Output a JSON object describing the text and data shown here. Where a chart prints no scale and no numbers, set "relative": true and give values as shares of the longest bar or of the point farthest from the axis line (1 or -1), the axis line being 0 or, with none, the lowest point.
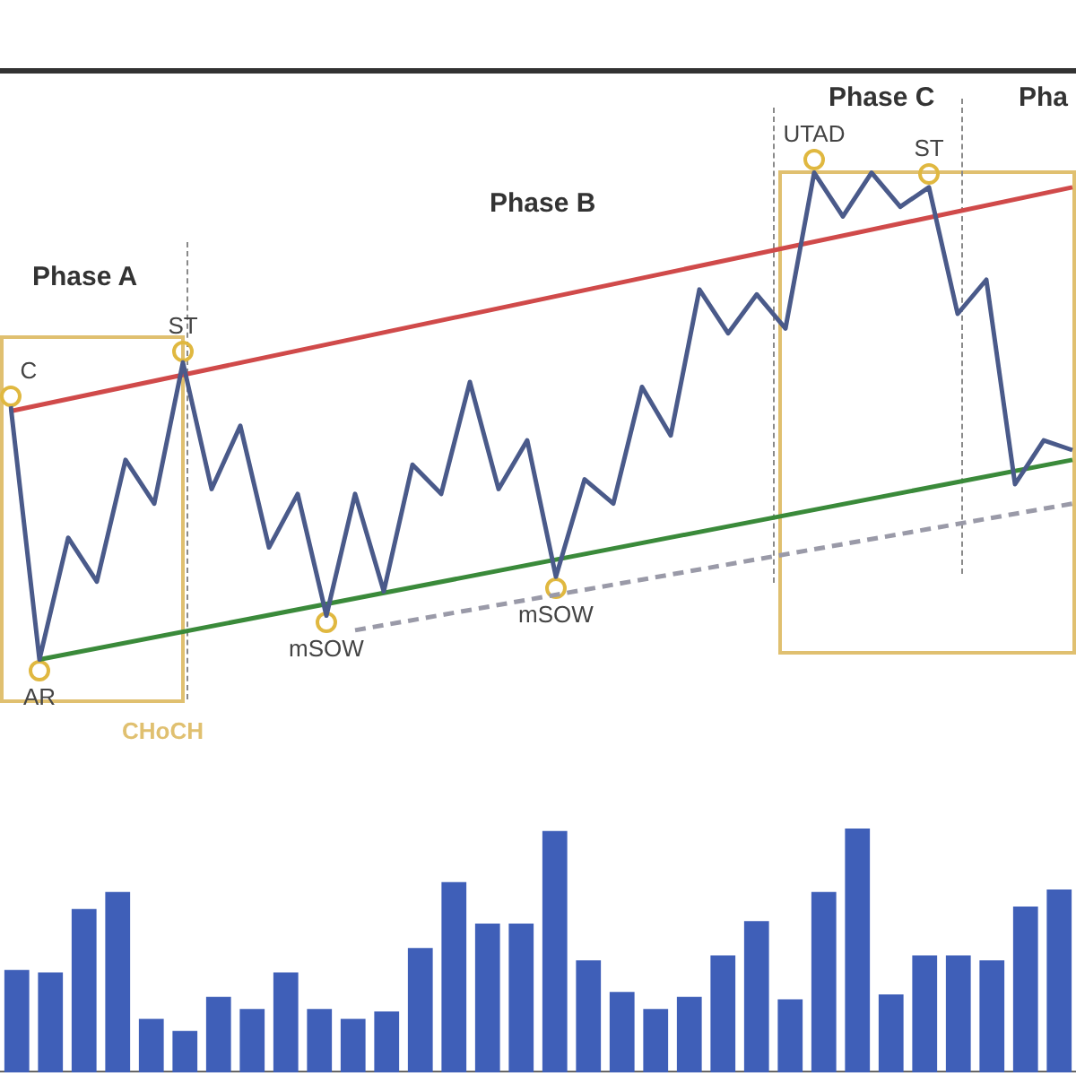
{
  "chart_data": [
    {
      "type": "line",
      "relative": true,
      "tick_labels": false,
      "grid": false,
      "legend": false,
      "categories": [
        null,
        null,
        null,
        null,
        null,
        null,
        null,
        null,
        null,
        null,
        null,
        null,
        null,
        null,
        null,
        null,
        null,
        null,
        null,
        null,
        null,
        null,
        null,
        null,
        null,
        null,
        null,
        null,
        null,
        null,
        null,
        null,
        null,
        null,
        null,
        null,
        null,
        null
      ],
      "series": [
        {
          "color": "#4a5a8a",
          "values": [
            0.52,
            0,
            0.25,
            0.16,
            0.41,
            0.32,
            0.61,
            0.35,
            0.48,
            0.23,
            0.34,
            0.09,
            0.34,
            0.14,
            0.4,
            0.34,
            0.57,
            0.35,
            0.45,
            0.17,
            0.37,
            0.32,
            0.56,
            0.46,
            0.76,
            0.67,
            0.75,
            0.68,
            1,
            0.91,
            1,
            0.93,
            0.97,
            0.71,
            0.78,
            0.36,
            0.45,
            0.43
          ]
        },
        {
          "color": "#d04a4a",
          "values": [
            0.51,
            null,
            null,
            null,
            null,
            null,
            null,
            null,
            null,
            null,
            null,
            null,
            null,
            null,
            null,
            null,
            null,
            null,
            null,
            null,
            null,
            null,
            null,
            null,
            null,
            null,
            null,
            null,
            null,
            null,
            null,
            null,
            null,
            null,
            null,
            null,
            null,
            0.97
          ]
        },
        {
          "color": "#3a8a3a",
          "values": [
            null,
            0,
            null,
            null,
            null,
            null,
            null,
            null,
            null,
            null,
            null,
            null,
            null,
            null,
            null,
            null,
            null,
            null,
            null,
            null,
            null,
            null,
            null,
            null,
            null,
            null,
            null,
            null,
            null,
            null,
            null,
            null,
            null,
            null,
            null,
            null,
            null,
            0.41
          ]
        },
        {
          "color": "#9a9aa8",
          "line_style": "dashed",
          "values": [
            null,
            null,
            null,
            null,
            null,
            null,
            null,
            null,
            null,
            null,
            null,
            null,
            0.06,
            null,
            null,
            null,
            null,
            null,
            null,
            null,
            null,
            null,
            null,
            null,
            null,
            null,
            null,
            null,
            null,
            null,
            null,
            null,
            null,
            null,
            null,
            null,
            null,
            0.32
          ]
        }
      ],
      "annotations": [
        "Phase A",
        "Phase B",
        "Phase C",
        "Pha",
        "CHoCH",
        "C",
        "AR",
        "ST",
        "mSOW",
        "mSOW",
        "UTAD",
        "ST"
      ]
    },
    {
      "type": "bar",
      "relative": true,
      "tick_labels": false,
      "grid": false,
      "legend": false,
      "color": "#3f5fb8",
      "categories": [
        null,
        null,
        null,
        null,
        null,
        null,
        null,
        null,
        null,
        null,
        null,
        null,
        null,
        null,
        null,
        null,
        null,
        null,
        null,
        null,
        null,
        null,
        null,
        null,
        null,
        null,
        null,
        null,
        null,
        null,
        null,
        null
      ],
      "values": [
        0.42,
        0.41,
        0.67,
        0.74,
        0.22,
        0.17,
        0.31,
        0.26,
        0.41,
        0.26,
        0.22,
        0.25,
        0.51,
        0.78,
        0.61,
        0.61,
        0.99,
        0.46,
        0.33,
        0.26,
        0.31,
        0.48,
        0.62,
        0.3,
        0.74,
        1,
        0.32,
        0.48,
        0.48,
        0.46,
        0.68,
        0.75
      ]
    }
  ]
}
